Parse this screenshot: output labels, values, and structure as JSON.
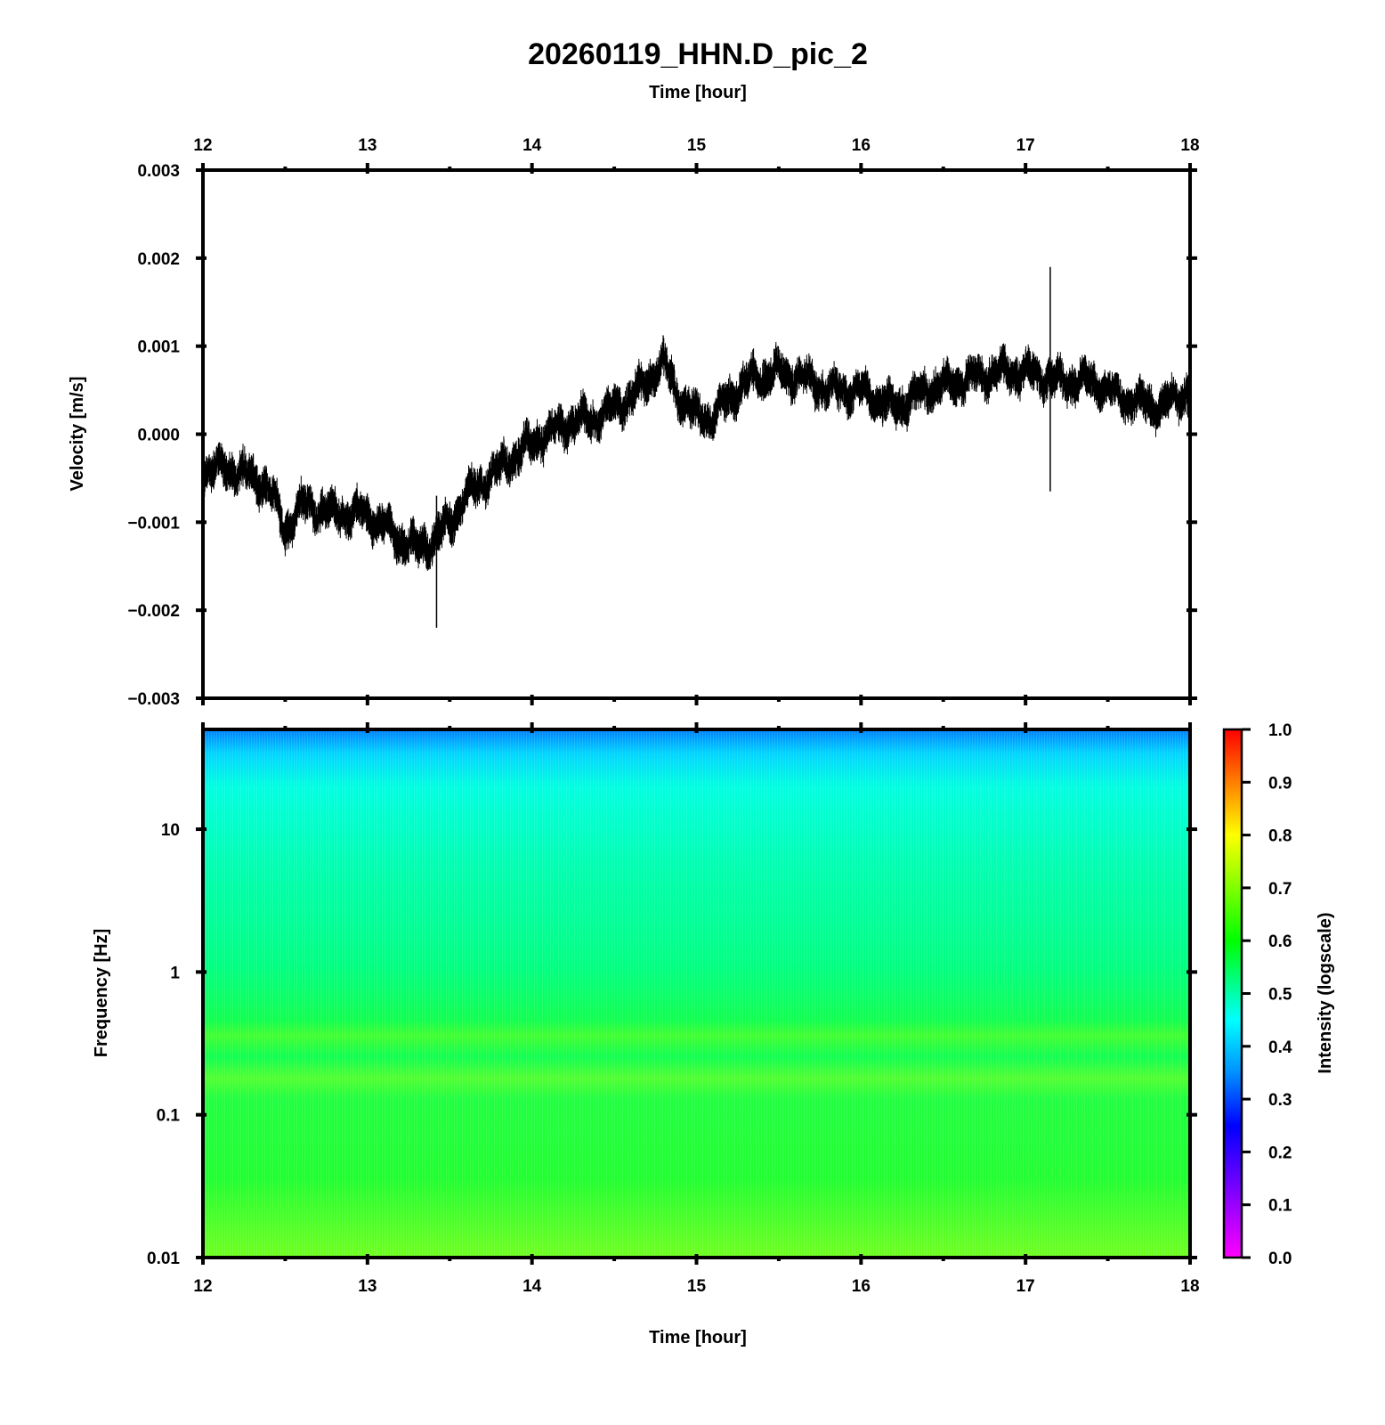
{
  "chart_data": [
    {
      "type": "line",
      "title": "20260119_HHN.D_pic_2",
      "xlabel": "Time [hour]",
      "ylabel": "Velocity [m/s]",
      "xlim": [
        12,
        18
      ],
      "ylim": [
        -0.003,
        0.003
      ],
      "x_ticks": [
        "12",
        "13",
        "14",
        "15",
        "16",
        "17",
        "18"
      ],
      "y_ticks": [
        "0.003",
        "0.002",
        "0.001",
        "0.000",
        "−0.001",
        "−0.002",
        "−0.003"
      ],
      "series": [
        {
          "color": "#000000",
          "x": [
            12.0,
            12.2,
            12.4,
            12.5,
            12.6,
            12.8,
            13.0,
            13.2,
            13.3,
            13.4,
            13.5,
            13.6,
            13.8,
            14.0,
            14.2,
            14.4,
            14.6,
            14.7,
            14.8,
            14.9,
            15.0,
            15.1,
            15.3,
            15.5,
            15.7,
            15.8,
            16.0,
            16.2,
            16.4,
            16.6,
            16.8,
            17.0,
            17.2,
            17.4,
            17.6,
            17.8,
            18.0
          ],
          "y": [
            -0.0004,
            -0.0004,
            -0.0006,
            -0.0011,
            -0.0008,
            -0.0009,
            -0.0009,
            -0.0012,
            -0.0013,
            -0.0012,
            -0.001,
            -0.0007,
            -0.0004,
            -0.0001,
            0.0001,
            0.0002,
            0.0004,
            0.0006,
            0.0008,
            0.0004,
            0.0002,
            0.0002,
            0.0006,
            0.0007,
            0.0006,
            0.0005,
            0.0005,
            0.0003,
            0.0005,
            0.0006,
            0.0007,
            0.0007,
            0.0006,
            0.0006,
            0.0004,
            0.0003,
            0.0005
          ]
        }
      ],
      "annotations": [
        {
          "x": 17.15,
          "y_min": -0.00065,
          "y_max": 0.0019,
          "note": "spike"
        },
        {
          "x": 13.42,
          "y_min": -0.0022,
          "y_max": -0.0007,
          "note": "spike"
        }
      ]
    },
    {
      "type": "heatmap",
      "xlabel": "Time [hour]",
      "ylabel": "Frequency [Hz]",
      "xlim": [
        12,
        18
      ],
      "yscale": "log",
      "ylim": [
        0.01,
        50
      ],
      "x_ticks": [
        "12",
        "13",
        "14",
        "15",
        "16",
        "17",
        "18"
      ],
      "y_ticks": [
        "10",
        "1",
        "0.1",
        "0.01"
      ],
      "colorbar": {
        "label": "Intensity (logscale)",
        "range": [
          0,
          1
        ],
        "ticks": [
          "1.0",
          "0.9",
          "0.8",
          "0.7",
          "0.6",
          "0.5",
          "0.4",
          "0.3",
          "0.2",
          "0.1",
          "0.0"
        ],
        "colormap": [
          "#ff00ff",
          "#0000ff",
          "#00aaff",
          "#00ffff",
          "#00ff00",
          "#ffff00",
          "#ff0000"
        ]
      },
      "frequency_profile": {
        "freq": [
          0.01,
          0.05,
          0.1,
          0.2,
          0.4,
          1,
          3,
          10,
          20,
          30,
          45
        ],
        "intensity": [
          0.64,
          0.6,
          0.59,
          0.61,
          0.6,
          0.55,
          0.52,
          0.49,
          0.45,
          0.41,
          0.35
        ]
      }
    }
  ]
}
